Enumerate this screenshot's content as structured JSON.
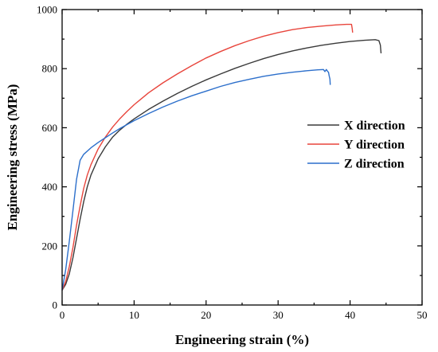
{
  "chart_data": {
    "type": "line",
    "title": "",
    "xlabel": "Engineering strain (%)",
    "ylabel": "Engineering stress (MPa)",
    "xlim": [
      0,
      50
    ],
    "ylim": [
      0,
      1000
    ],
    "xticks": [
      0,
      10,
      20,
      30,
      40,
      50
    ],
    "yticks": [
      0,
      200,
      400,
      600,
      800,
      1000
    ],
    "xtick_labels": [
      "0",
      "10",
      "20",
      "30",
      "40",
      "50"
    ],
    "ytick_labels": [
      "0",
      "200",
      "400",
      "600",
      "800",
      "1000"
    ],
    "grid": false,
    "legend_position": "right",
    "series": [
      {
        "name": "X direction",
        "color": "#3a3a3a",
        "points": [
          [
            0,
            50
          ],
          [
            0.5,
            70
          ],
          [
            1,
            105
          ],
          [
            1.5,
            160
          ],
          [
            2,
            225
          ],
          [
            2.5,
            290
          ],
          [
            3,
            350
          ],
          [
            3.5,
            400
          ],
          [
            4,
            440
          ],
          [
            5,
            495
          ],
          [
            6,
            535
          ],
          [
            7,
            568
          ],
          [
            8,
            592
          ],
          [
            9,
            612
          ],
          [
            10,
            630
          ],
          [
            12,
            662
          ],
          [
            14,
            690
          ],
          [
            16,
            716
          ],
          [
            18,
            740
          ],
          [
            20,
            762
          ],
          [
            22,
            782
          ],
          [
            24,
            801
          ],
          [
            26,
            818
          ],
          [
            28,
            834
          ],
          [
            30,
            848
          ],
          [
            32,
            860
          ],
          [
            34,
            870
          ],
          [
            36,
            879
          ],
          [
            38,
            886
          ],
          [
            40,
            892
          ],
          [
            42,
            896
          ],
          [
            43.5,
            898
          ],
          [
            44,
            895
          ],
          [
            44.2,
            880
          ],
          [
            44.3,
            852
          ]
        ]
      },
      {
        "name": "Y direction",
        "color": "#e8453c",
        "points": [
          [
            0,
            50
          ],
          [
            0.5,
            80
          ],
          [
            1,
            130
          ],
          [
            1.5,
            195
          ],
          [
            2,
            270
          ],
          [
            2.5,
            335
          ],
          [
            3,
            395
          ],
          [
            3.5,
            440
          ],
          [
            4,
            475
          ],
          [
            5,
            528
          ],
          [
            6,
            568
          ],
          [
            7,
            602
          ],
          [
            8,
            630
          ],
          [
            9,
            655
          ],
          [
            10,
            678
          ],
          [
            12,
            718
          ],
          [
            14,
            752
          ],
          [
            16,
            782
          ],
          [
            18,
            810
          ],
          [
            20,
            836
          ],
          [
            22,
            858
          ],
          [
            24,
            878
          ],
          [
            26,
            895
          ],
          [
            28,
            910
          ],
          [
            30,
            922
          ],
          [
            32,
            932
          ],
          [
            34,
            939
          ],
          [
            36,
            944
          ],
          [
            38,
            948
          ],
          [
            39.5,
            950
          ],
          [
            40.2,
            950
          ],
          [
            40.3,
            935
          ],
          [
            40.35,
            922
          ]
        ]
      },
      {
        "name": "Z direction",
        "color": "#2c6fcb",
        "points": [
          [
            0,
            50
          ],
          [
            0.5,
            120
          ],
          [
            1,
            215
          ],
          [
            1.5,
            320
          ],
          [
            2,
            425
          ],
          [
            2.5,
            490
          ],
          [
            3,
            510
          ],
          [
            4,
            532
          ],
          [
            5,
            550
          ],
          [
            6,
            566
          ],
          [
            7,
            582
          ],
          [
            8,
            597
          ],
          [
            10,
            624
          ],
          [
            12,
            648
          ],
          [
            14,
            670
          ],
          [
            16,
            690
          ],
          [
            18,
            708
          ],
          [
            20,
            724
          ],
          [
            22,
            740
          ],
          [
            24,
            753
          ],
          [
            26,
            764
          ],
          [
            28,
            774
          ],
          [
            30,
            782
          ],
          [
            32,
            788
          ],
          [
            34,
            793
          ],
          [
            35.5,
            796
          ],
          [
            36.3,
            797
          ],
          [
            36.5,
            790
          ],
          [
            36.7,
            797
          ],
          [
            36.9,
            790
          ],
          [
            37,
            788
          ],
          [
            37.1,
            775
          ],
          [
            37.2,
            765
          ],
          [
            37.25,
            745
          ]
        ]
      }
    ]
  }
}
